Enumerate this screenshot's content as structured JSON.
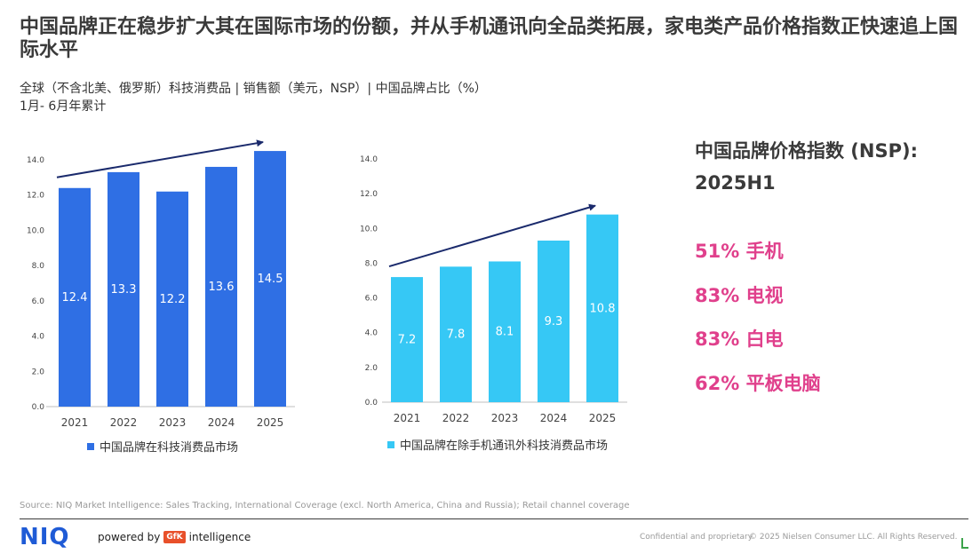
{
  "title": "中国品牌正在稳步扩大其在国际市场的份额，并从手机通讯向全品类拓展，家电类产品价格指数正快速追上国际水平",
  "subtitle": "全球（不含北美、俄罗斯）科技消费品 | 销售额（美元，NSP）| 中国品牌占比（%）",
  "subtitle2": "1月- 6月年累计",
  "chart_data": [
    {
      "type": "bar",
      "categories": [
        "2021",
        "2022",
        "2023",
        "2024",
        "2025"
      ],
      "series": [
        {
          "name": "中国品牌在科技消费品市场",
          "values": [
            12.4,
            13.3,
            12.2,
            13.6,
            14.5
          ]
        }
      ],
      "value_labels": [
        "12.4",
        "13.3",
        "12.2",
        "13.6",
        "14.5"
      ],
      "ylim": [
        0,
        14
      ],
      "yticks": [
        0,
        2,
        4,
        6,
        8,
        10,
        12,
        14
      ],
      "ytick_labels": [
        "0.0",
        "2.0",
        "4.0",
        "6.0",
        "8.0",
        "10.0",
        "12.0",
        "14.0"
      ],
      "color": "#2f6fe4",
      "trend_arrow": true
    },
    {
      "type": "bar",
      "categories": [
        "2021",
        "2022",
        "2023",
        "2024",
        "2025"
      ],
      "series": [
        {
          "name": "中国品牌在除手机通讯外科技消费品市场",
          "values": [
            7.2,
            7.8,
            8.1,
            9.3,
            10.8
          ]
        }
      ],
      "value_labels": [
        "7.2",
        "7.8",
        "8.1",
        "9.3",
        "10.8"
      ],
      "ylim": [
        0,
        14
      ],
      "yticks": [
        0,
        2,
        4,
        6,
        8,
        10,
        12,
        14
      ],
      "ytick_labels": [
        "0.0",
        "2.0",
        "4.0",
        "6.0",
        "8.0",
        "10.0",
        "12.0",
        "14.0"
      ],
      "color": "#36c8f5",
      "trend_arrow": true
    }
  ],
  "price_panel": {
    "title_line1": "中国品牌价格指数 (NSP):",
    "title_line2": "2025H1",
    "items": [
      "51% 手机",
      "83% 电视",
      "83% 白电",
      "62% 平板电脑"
    ],
    "color": "#e0408c"
  },
  "source": "Source: NIQ Market Intelligence: Sales Tracking, International Coverage (excl. North America, China and Russia); Retail channel coverage",
  "footer": {
    "logo": "NIQ",
    "powered_by": "powered by",
    "gfk": "GfK",
    "intelligence": "intelligence",
    "confidential": "Confidential and proprietary",
    "copyright": "© 2025 Nielsen Consumer LLC. All Rights Reserved."
  }
}
